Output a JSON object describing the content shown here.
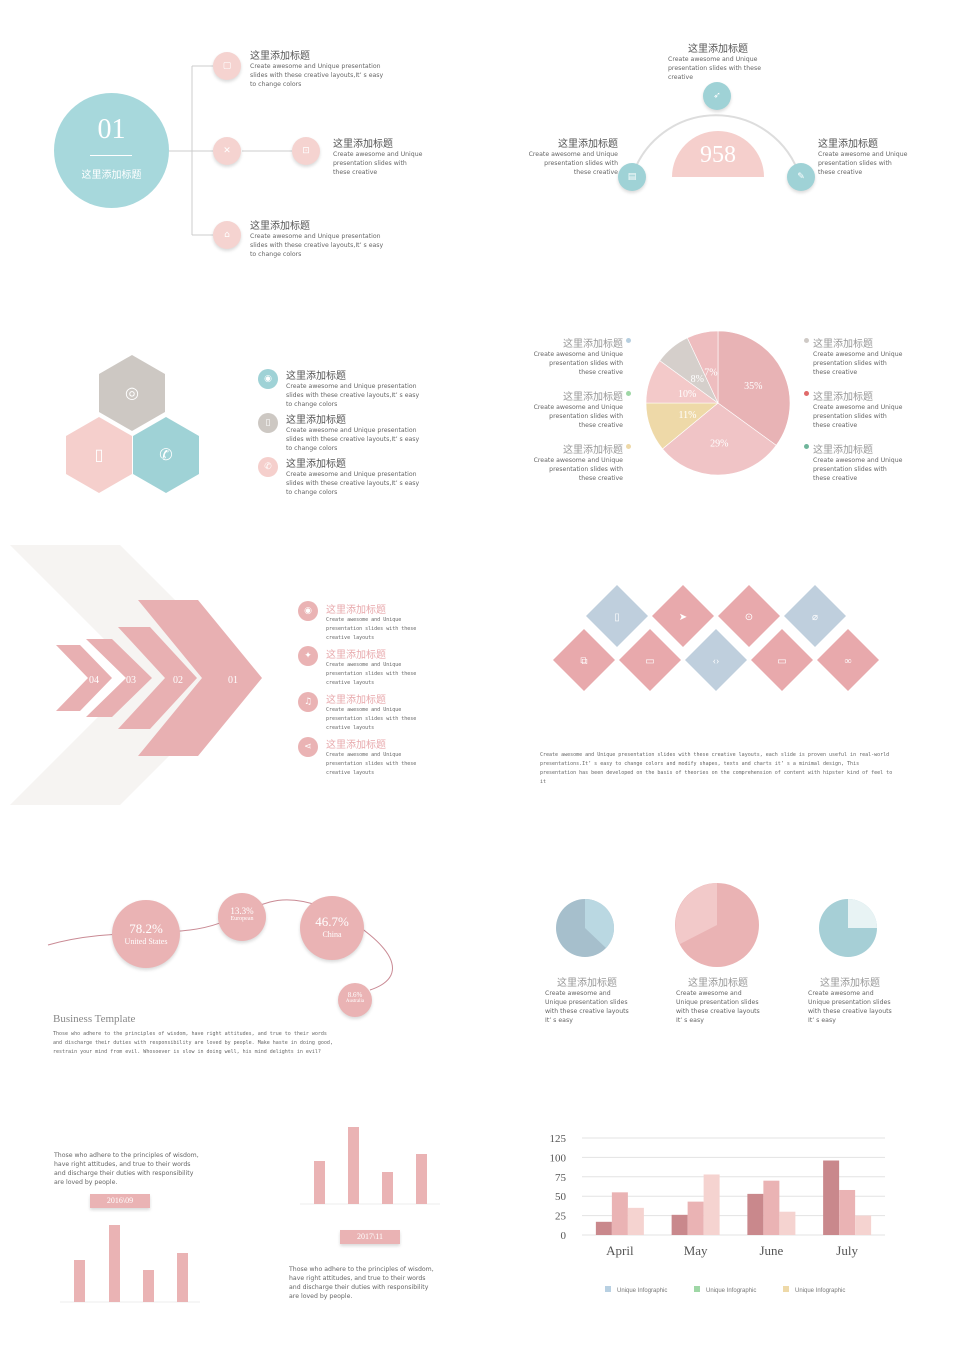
{
  "colors": {
    "pink": "#e8a9ac",
    "light_pink": "#f5d3d0",
    "teal": "#9fd2d6",
    "grey": "#cfcac6",
    "yellow": "#eed9a8",
    "blue": "#bfcfdd"
  },
  "s1": {
    "big_number": "01",
    "big_label": "这里添加标题",
    "items": [
      {
        "title": "这里添加标题",
        "text": "Create awesome and Unique presentation slides with these creative layouts,It’ s easy to change colors",
        "icon": "bag-icon"
      },
      {
        "title": "这里添加标题",
        "text": "Create awesome and Unique presentation slides with these creative",
        "icon": "tag-icon"
      },
      {
        "title": "这里添加标题",
        "text": "Create awesome and Unique presentation slides with these creative layouts,It’ s easy to change colors",
        "icon": "cart-icon"
      }
    ]
  },
  "s2": {
    "number": "958",
    "top": {
      "title": "这里添加标题",
      "text": "Create awesome and Unique presentation slides with these creative"
    },
    "left": {
      "title": "这里添加标题",
      "text": "Create awesome and Unique presentation slides with these creative"
    },
    "right": {
      "title": "这里添加标题",
      "text": "Create awesome and Unique presentation slides with these creative"
    }
  },
  "s3": {
    "items": [
      {
        "title": "这里添加标题",
        "text": "Create awesome and Unique presentation slides with these creative layouts,It’ s easy to change colors"
      },
      {
        "title": "这里添加标题",
        "text": "Create awesome and Unique presentation slides with these creative layouts,It’ s easy to change colors"
      },
      {
        "title": "这里添加标题",
        "text": "Create awesome and Unique presentation slides with these creative layouts,It’ s easy to change colors"
      }
    ]
  },
  "s4": {
    "left": [
      {
        "title": "这里添加标题",
        "text": "Create awesome and Unique presentation slides with these creative"
      },
      {
        "title": "这里添加标题",
        "text": "Create awesome and Unique presentation slides with these creative"
      },
      {
        "title": "这里添加标题",
        "text": "Create awesome and Unique presentation slides with these creative"
      }
    ],
    "right": [
      {
        "title": "这里添加标题",
        "text": "Create awesome and Unique presentation slides with these creative"
      },
      {
        "title": "这里添加标题",
        "text": "Create awesome and Unique presentation slides with these creative"
      },
      {
        "title": "这里添加标题",
        "text": "Create awesome and Unique presentation slides with these creative"
      }
    ]
  },
  "chart_data": [
    {
      "type": "pie",
      "labels": [
        "35%",
        "29%",
        "11%",
        "10%",
        "8%",
        "7%"
      ],
      "values": [
        35,
        29,
        11,
        10,
        8,
        7
      ],
      "colors": [
        "#e8b3b5",
        "#f0c4c6",
        "#eed9a8",
        "#f3c9c9",
        "#d5cfcb",
        "#eebdbf"
      ]
    },
    {
      "type": "bar",
      "categories": [
        "April",
        "May",
        "June",
        "July"
      ],
      "series": [
        {
          "name": "Unique Infographic",
          "values": [
            17,
            26,
            53,
            96
          ]
        },
        {
          "name": "Unique Infographic",
          "values": [
            55,
            43,
            70,
            58
          ]
        },
        {
          "name": "Unique Infographic",
          "values": [
            35,
            78,
            30,
            25
          ]
        }
      ],
      "ylim": [
        0,
        125
      ],
      "yticks": [
        "0",
        "25",
        "50",
        "75",
        "100",
        "125"
      ]
    }
  ],
  "s5": {
    "arrows": [
      "04",
      "03",
      "02",
      "01"
    ],
    "items": [
      {
        "title": "这里添加标题",
        "text": "Create awesome and Unique presentation slides with these creative layouts"
      },
      {
        "title": "这里添加标题",
        "text": "Create awesome and Unique presentation slides with these creative layouts"
      },
      {
        "title": "这里添加标题",
        "text": "Create awesome and Unique presentation slides with these creative layouts"
      },
      {
        "title": "这里添加标题",
        "text": "Create awesome and Unique presentation slides with these creative layouts"
      }
    ]
  },
  "s6": {
    "text": "Create awesome and Unique presentation slides with these creative layouts, each slide is proven useful in real-world presentations.It’ s easy to change colors and modify shapes, texts and charts it’ s a minimal design, This presentation has been developed on the basis of theories on the comprehension of content with hipster kind of feel to it"
  },
  "s7": {
    "bubbles": [
      {
        "value": "78.2%",
        "label": "United States"
      },
      {
        "value": "13.3%",
        "label": "European"
      },
      {
        "value": "46.7%",
        "label": "China"
      },
      {
        "value": "8.6%",
        "label": "Australia"
      }
    ],
    "title": "Business Template",
    "text": "Those who adhere to the principles of wisdom, have right attitudes, and true to their words and discharge their duties with responsibility are loved by people. Make haste in doing good, restrain your mind from evil. Whosoever is slow in doing well, his mind delights in evil?"
  },
  "s8": {
    "items": [
      {
        "title": "这里添加标题",
        "text": "Create awesome and Unique presentation slides with these creative layouts It’ s easy"
      },
      {
        "title": "这里添加标题",
        "text": "Create awesome and Unique presentation slides with these creative layouts It’ s easy"
      },
      {
        "title": "这里添加标题",
        "text": "Create awesome and Unique presentation slides with these creative layouts It’ s easy"
      }
    ]
  },
  "s9": {
    "text1": "Those who adhere to the principles of wisdom, have right attitudes, and true to their words and discharge their duties with responsibility are loved by people.",
    "label1": "2016\\09",
    "label2": "2017\\11",
    "text2": "Those who adhere to the principles of wisdom, have right attitudes, and true to their words and discharge their duties with responsibility are loved by people."
  }
}
